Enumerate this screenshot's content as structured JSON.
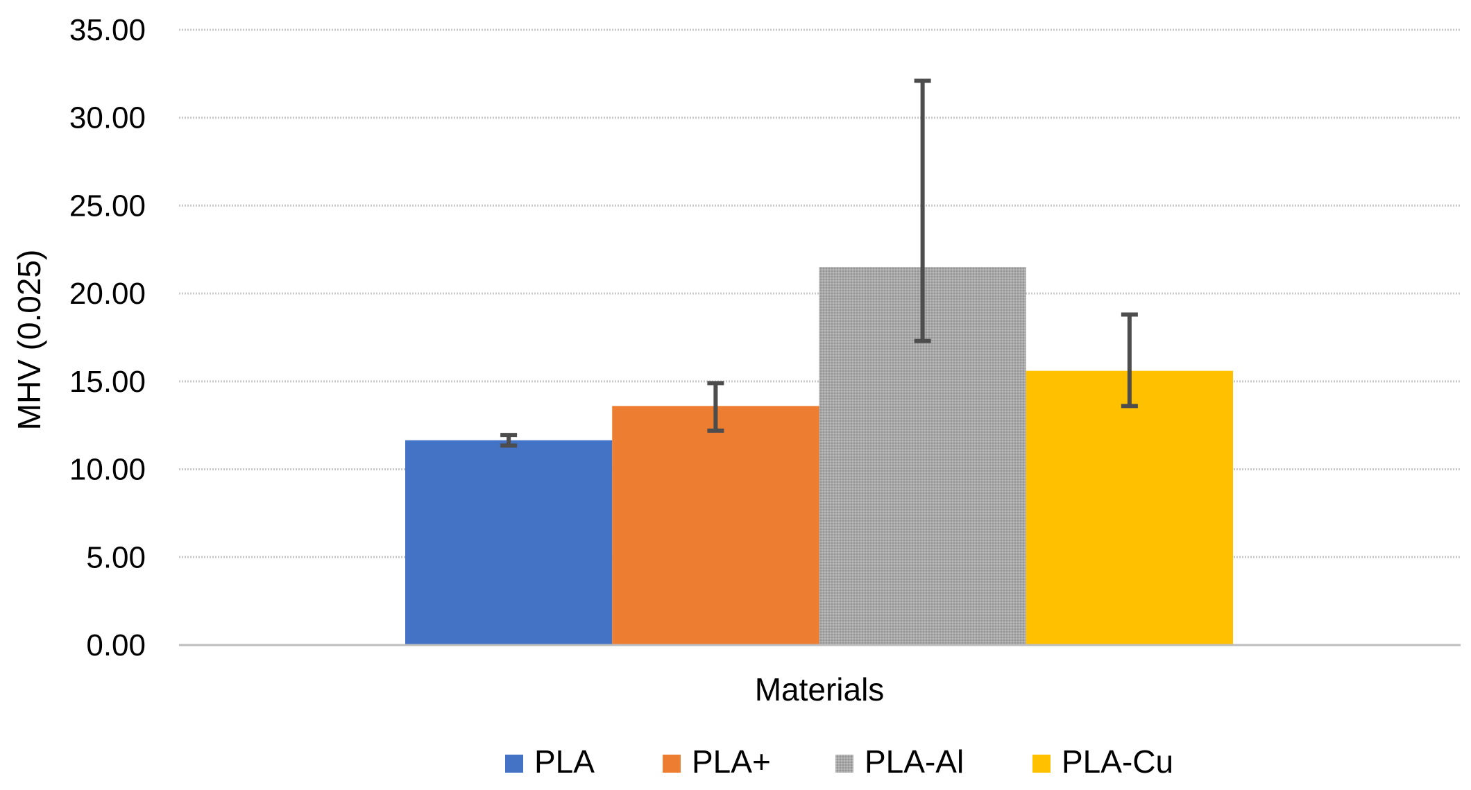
{
  "chart_data": {
    "type": "bar",
    "title": "",
    "xlabel": "Materials",
    "ylabel": "MHV (0.025)",
    "ylim": [
      0,
      35
    ],
    "yticks": [
      0,
      5,
      10,
      15,
      20,
      25,
      30,
      35
    ],
    "ytick_labels": [
      "0.00",
      "5.00",
      "10.00",
      "15.00",
      "20.00",
      "25.00",
      "30.00",
      "35.00"
    ],
    "grid": true,
    "legend_position": "bottom",
    "categories": [
      "Materials"
    ],
    "series": [
      {
        "name": "PLA",
        "values": [
          11.65
        ],
        "error_low": [
          11.35
        ],
        "error_high": [
          11.95
        ],
        "color": "#4472C4"
      },
      {
        "name": "PLA+",
        "values": [
          13.6
        ],
        "error_low": [
          12.2
        ],
        "error_high": [
          14.9
        ],
        "color": "#ED7D31"
      },
      {
        "name": "PLA-Al",
        "values": [
          21.5
        ],
        "error_low": [
          17.3
        ],
        "error_high": [
          32.1
        ],
        "color": "#A5A5A5"
      },
      {
        "name": "PLA-Cu",
        "values": [
          15.6
        ],
        "error_low": [
          13.6
        ],
        "error_high": [
          18.8
        ],
        "color": "#FFC000"
      }
    ]
  }
}
